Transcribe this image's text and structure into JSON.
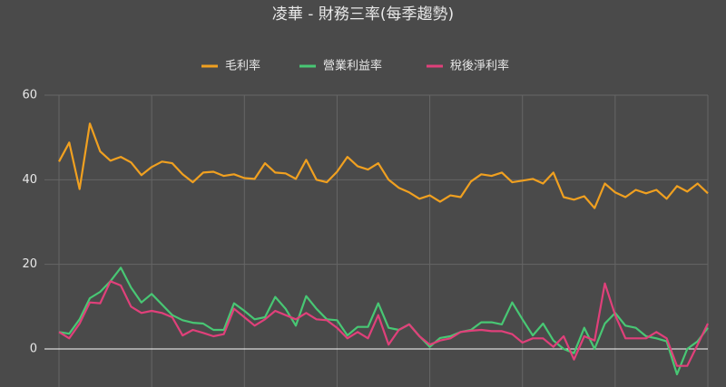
{
  "chart_data": {
    "type": "line",
    "title": "凌華 - 財務三率(每季趨勢)",
    "categories": [
      null,
      null,
      null,
      null,
      null,
      null,
      null,
      null,
      null,
      null,
      null,
      null,
      null,
      null,
      null,
      null,
      null,
      null,
      null,
      null,
      null,
      null,
      null,
      null,
      null,
      null,
      null,
      null,
      null,
      null,
      null,
      null,
      null,
      null,
      null,
      null,
      null,
      null,
      null,
      null,
      null,
      null,
      null,
      null,
      null,
      null,
      null,
      null,
      null,
      null,
      null,
      null,
      null,
      null,
      null,
      null,
      null,
      null,
      null,
      null,
      null,
      null,
      null,
      null
    ],
    "series": [
      {
        "name": "毛利率",
        "color": "#f0a020",
        "values": [
          44.3,
          48.8,
          37.8,
          53.3,
          46.7,
          44.5,
          45.4,
          44.1,
          41.1,
          43,
          44.3,
          43.9,
          41.3,
          39.4,
          41.7,
          41.9,
          40.9,
          41.3,
          40.4,
          40.2,
          43.9,
          41.7,
          41.5,
          40.2,
          44.7,
          40,
          39.4,
          41.9,
          45.4,
          43.2,
          42.4,
          43.9,
          40,
          38.1,
          37,
          35.5,
          36.3,
          34.8,
          36.3,
          35.9,
          39.6,
          41.3,
          40.9,
          41.7,
          39.4,
          39.8,
          40.2,
          39.1,
          41.7,
          35.9,
          35.3,
          36.1,
          33.3,
          39.1,
          37,
          35.9,
          37.6,
          36.8,
          37.6,
          35.5,
          38.5,
          37.2,
          39.1,
          36.8
        ]
      },
      {
        "name": "營業利益率",
        "color": "#48c774",
        "values": [
          4,
          3.6,
          7,
          12,
          13.5,
          16,
          19.2,
          14.5,
          11,
          13,
          10.5,
          8,
          6.8,
          6.2,
          6,
          4.5,
          4.5,
          10.8,
          9,
          7,
          7.5,
          12.3,
          9.5,
          5.5,
          12.5,
          9.5,
          7,
          6.8,
          3.2,
          5.2,
          5.2,
          10.8,
          5,
          4.5,
          5.8,
          3,
          0.5,
          2.6,
          3,
          4,
          4.5,
          6.3,
          6.3,
          5.8,
          11,
          7,
          3.2,
          6,
          2,
          0,
          -1,
          5,
          0,
          6,
          8.5,
          5.5,
          5,
          3,
          2.5,
          1.8,
          -6,
          0,
          1.8,
          5
        ]
      },
      {
        "name": "稅後淨利率",
        "color": "#e0407a",
        "values": [
          4,
          2.5,
          6,
          11,
          10.8,
          16,
          15,
          10,
          8.5,
          9,
          8.5,
          7.5,
          3.2,
          4.5,
          3.8,
          3,
          3.5,
          9.5,
          7.5,
          5.5,
          7,
          9,
          8,
          7,
          8.5,
          7,
          6.8,
          5,
          2.5,
          4,
          2.5,
          8,
          1,
          4.5,
          5.8,
          3,
          1,
          2,
          2.5,
          4,
          4.3,
          4.5,
          4.2,
          4.2,
          3.5,
          1.5,
          2.5,
          2.5,
          0.5,
          3,
          -2.5,
          3,
          2,
          15.5,
          8,
          2.5,
          2.5,
          2.5,
          4,
          2.5,
          -4,
          -4,
          1,
          6
        ]
      }
    ],
    "ylim": [
      -9,
      60
    ],
    "yticks": [
      0,
      20,
      40,
      60
    ],
    "grid": true
  }
}
